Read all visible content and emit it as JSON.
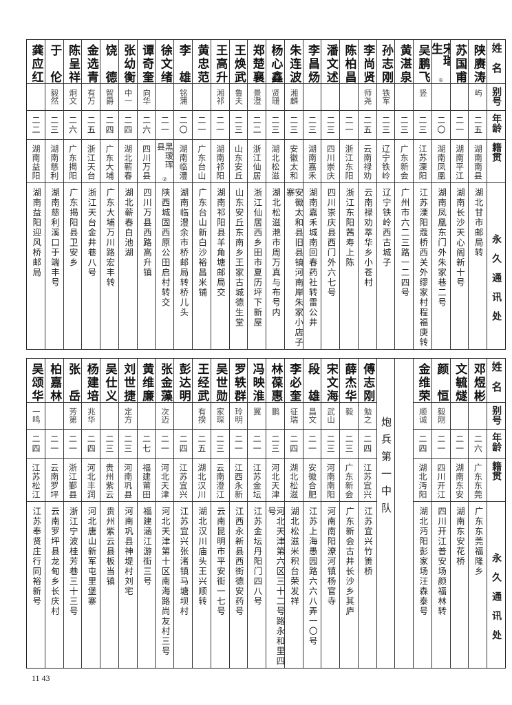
{
  "header": {
    "name": "姓名",
    "alias": "别号",
    "age": "年龄",
    "native": "籍贯",
    "address": "永久通讯处"
  },
  "top_table": {
    "rows": [
      {
        "name": "陕赓涛",
        "alias": "屿",
        "age": "二五",
        "native": "湖南南县",
        "address": "湖北甘市邮局转"
      },
      {
        "name": "苏国甫",
        "alias": "",
        "age": "二一",
        "native": "湖南平江",
        "address": "湖南长沙天心阁新十号"
      },
      {
        "name": "宋瑞生",
        "note": "①",
        "alias": "",
        "age": "二〇",
        "native": "湖南凤凰",
        "address": "湖南凤凰东门外朱家巷二号"
      },
      {
        "name": "吴鹏飞",
        "alias": "竖",
        "age": "二三",
        "native": "江苏溧阳",
        "address": "江苏溧阳蔻桥西关外缪家村程福庚转"
      },
      {
        "name": "黄湛泉",
        "alias": "",
        "age": "二三",
        "native": "广东新会",
        "address": "广州市六二三路一二四号"
      },
      {
        "name": "孙志刚",
        "alias": "铁军",
        "age": "二三",
        "native": "辽宁铁岭",
        "address": "辽宁铁岭西古城子"
      },
      {
        "name": "李尚贤",
        "alias": "师尧",
        "age": "二五",
        "native": "云南禄劝",
        "address": "云南禄劝萃华乡小苍村"
      },
      {
        "name": "陈柏昌",
        "alias": "",
        "age": "二一",
        "native": "浙江东阳",
        "address": "浙江东阳茜寿上陈"
      },
      {
        "name": "潘文述",
        "alias": "",
        "age": "二三",
        "native": "四川崇庆",
        "address": "四川崇庆县西门外六七号"
      },
      {
        "name": "李昌炀",
        "alias": "",
        "age": "二三",
        "native": "湖南嘉禾",
        "address": "湖南嘉禾城南回春药社转雷公井"
      },
      {
        "name": "朱连波",
        "alias": "湘麟",
        "age": "二三",
        "native": "安徽太和",
        "address": "安徽太和县旧县镇河南岸朱家小店子寨"
      },
      {
        "name": "杨心鑫",
        "alias": "贤珊",
        "age": "二三",
        "native": "湖北松滋",
        "address": "湖北松滋滟市周万真与布号内"
      },
      {
        "name": "郑楚襄",
        "alias": "景澄",
        "age": "二二",
        "native": "浙江仙居",
        "address": "浙江仙居西乡田市夏历坪下新屋"
      },
      {
        "name": "王焕武",
        "alias": "鲁夫",
        "age": "二三",
        "native": "山东安丘",
        "address": "山东安丘东南乡王家古城德生堂"
      },
      {
        "name": "王高升",
        "alias": "湘祁",
        "age": "二一",
        "native": "湖南祁阳",
        "address": "湖南祁阳县羊角塘邮局交"
      },
      {
        "name": "黄忠范",
        "alias": "",
        "age": "二一",
        "native": "广东台山",
        "address": "广东台山新白沙裕昌米铺"
      },
      {
        "name": "李雄",
        "alias": "铭蒲",
        "age": "二〇",
        "native": "湖南临澧",
        "address": "湖南临澧余市桥邮局转桥儿头"
      },
      {
        "name": "徐文绪",
        "alias": "",
        "age": "二一",
        "native": "黑瑷珲县",
        "note": "②",
        "address": "陕西城固西原公田启村转交"
      },
      {
        "name": "谭奇奎",
        "alias": "向华",
        "age": "二六",
        "native": "四川万县",
        "address": "四川万县西路高升镇"
      },
      {
        "name": "张幼衡",
        "alias": "中一",
        "age": "二四",
        "native": "湖北蕲春",
        "address": "湖北蕲春白池湖"
      },
      {
        "name": "饶德",
        "alias": "智爵",
        "age": "二四",
        "native": "广东大埔",
        "address": "广东大埔万川路宏丰转"
      },
      {
        "name": "金选青",
        "alias": "有万",
        "age": "二五",
        "native": "浙江天台",
        "address": "浙江天台金井巷八号"
      },
      {
        "name": "陈呈祥",
        "alias": "炯文",
        "age": "二六",
        "native": "广东揭阳",
        "address": "广东揭阳县卫安乡"
      },
      {
        "name": "于伦",
        "alias": "毅然",
        "age": "二三",
        "native": "湖南慈利",
        "address": "湖南慈利溪口于端丰号"
      },
      {
        "name": "龚应红",
        "alias": "",
        "age": "二二",
        "native": "湖南益阳",
        "address": "湖南益阳迎风桥邮局"
      }
    ]
  },
  "bottom_table": {
    "unit_label": "炮兵第一中队",
    "rows_right": [
      {
        "name": "邓煜彬",
        "alias": "",
        "age": "二六",
        "native": "广东东莞",
        "address": "广东东莞福隆乡"
      },
      {
        "name": "文毓燧",
        "alias": "",
        "age": "二一",
        "native": "湖南东安",
        "address": "湖南东安花桥"
      },
      {
        "name": "颜恒",
        "alias": "毅刚",
        "age": "二一",
        "native": "四川开江",
        "address": "四川开江普安场颜福林转"
      },
      {
        "name": "金维荣",
        "alias": "顺诚",
        "age": "二四",
        "native": "湖北沔阳",
        "address": "湖北沔阳彭家场汪森泰号"
      }
    ],
    "rows_left": [
      {
        "name": "傅志刚",
        "alias": "勉之",
        "age": "二四",
        "native": "江苏宜兴",
        "address": "江苏宜兴竹箦桥"
      },
      {
        "name": "薛杰华",
        "alias": "毅",
        "age": "二三",
        "native": "广东新会",
        "address": "广东新会古井长沙乡其庐"
      },
      {
        "name": "宋文海",
        "alias": "武山",
        "age": "二三",
        "native": "河南南阳",
        "address": "河南南阳潦河镇杨官寺"
      },
      {
        "name": "段雄",
        "alias": "昌文",
        "age": "二一",
        "native": "安徽合肥",
        "address": "江苏上海愚园路六六八弄一〇号"
      },
      {
        "name": "李必奎",
        "alias": "征瑞",
        "age": "二四",
        "native": "湖北松滋",
        "address": "湖北松滋米积台荣发祥"
      },
      {
        "name": "林葆惠",
        "alias": "鹏",
        "age": "二三",
        "native": "河北天津",
        "address": "河北天津第六区三十二号路永和里四号"
      },
      {
        "name": "冯映淮",
        "alias": "翼",
        "age": "二一",
        "native": "江苏金坛",
        "address": "江苏金坛丹阳门四八号"
      },
      {
        "name": "罗轶群",
        "alias": "玲明",
        "age": "二一",
        "native": "江西永新",
        "address": "江西永新县西街德安药号"
      },
      {
        "name": "吴世勋",
        "alias": "家琛",
        "age": "二三",
        "native": "云南澄江",
        "address": "云南昆明市平安街一七号"
      },
      {
        "name": "王经武",
        "alias": "有揆",
        "age": "二五",
        "native": "湖北汉川",
        "address": "湖北汉川庙头王兴顺转"
      },
      {
        "name": "彭达明",
        "alias": "",
        "age": "二四",
        "native": "江苏宜兴",
        "address": "江苏宜兴张渚镇马塘坝村"
      },
      {
        "name": "张金藻",
        "alias": "次迈",
        "age": "二一",
        "native": "河北天津",
        "address": "河北天津第十区南海路尚友村三号"
      },
      {
        "name": "黄维廉",
        "alias": "",
        "age": "二七",
        "native": "福建莆田",
        "address": "福建涵江游街三号"
      },
      {
        "name": "刘世捷",
        "alias": "定方",
        "age": "二三",
        "native": "河南巩县",
        "address": "河南巩县神堤村刘宅"
      },
      {
        "name": "吴仕义",
        "alias": "",
        "age": "二三",
        "native": "贵州紫云",
        "address": "贵州紫云县板当镇"
      },
      {
        "name": "杨建培",
        "alias": "兆华",
        "age": "二四",
        "native": "河北丰润",
        "address": "河北唐山新军屯里堡寨"
      },
      {
        "name": "张岳",
        "alias": "芳第",
        "age": "二一",
        "native": "浙江鄞县",
        "address": "浙江宁波桂芳巷三十三号"
      },
      {
        "name": "柏嘉林",
        "alias": "",
        "age": "二一",
        "native": "云南罗坪",
        "address": "云南罗坪县龙甸乡长庆村"
      },
      {
        "name": "吴颂华",
        "alias": "一鸣",
        "age": "二四",
        "native": "江苏松江",
        "address": "江苏奉贤庄行同裕新号"
      }
    ]
  },
  "page_number": "11 43"
}
